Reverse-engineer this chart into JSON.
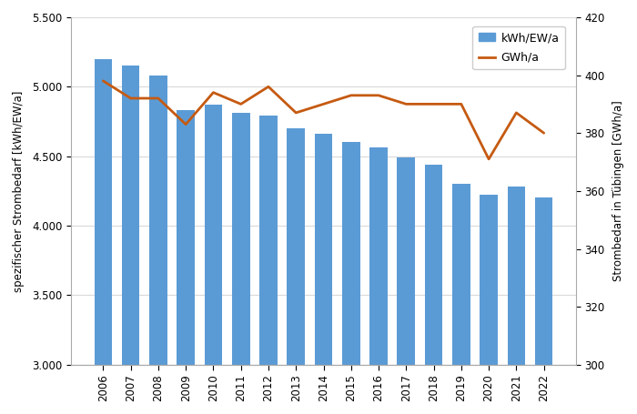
{
  "years": [
    2006,
    2007,
    2008,
    2009,
    2010,
    2011,
    2012,
    2013,
    2014,
    2015,
    2016,
    2017,
    2018,
    2019,
    2020,
    2021,
    2022
  ],
  "bar_values": [
    5200,
    5150,
    5080,
    4830,
    4870,
    4810,
    4790,
    4700,
    4660,
    4600,
    4560,
    4490,
    4440,
    4300,
    4220,
    4280,
    4200
  ],
  "line_values": [
    398,
    392,
    392,
    383,
    394,
    390,
    396,
    387,
    390,
    393,
    393,
    390,
    390,
    390,
    371,
    387,
    380
  ],
  "bar_color": "#5B9BD5",
  "line_color": "#C55A11",
  "ylabel_left": "spezifischer Strombedarf [kWh/EW/a]",
  "ylabel_right": "Strombedarf in Tübingen [GWh/a]",
  "ylim_left": [
    3000,
    5500
  ],
  "ylim_right": [
    300,
    420
  ],
  "yticks_left": [
    3000,
    3500,
    4000,
    4500,
    5000,
    5500
  ],
  "yticks_right": [
    300,
    320,
    340,
    360,
    380,
    400,
    420
  ],
  "legend_labels": [
    "kWh/EW/a",
    "GWh/a"
  ],
  "grid_color": "#D9D9D9",
  "background_color": "#FFFFFF",
  "bar_width": 0.65,
  "ylabel_fontsize": 8.5,
  "tick_fontsize": 8.5,
  "legend_fontsize": 9
}
